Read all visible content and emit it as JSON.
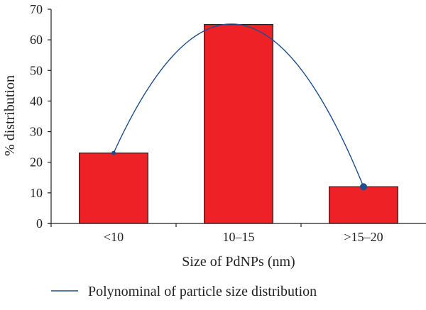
{
  "chart_data": {
    "type": "bar",
    "title": "",
    "xlabel": "Size of PdNPs (nm)",
    "ylabel": "% distribution",
    "categories": [
      "<10",
      "10–15",
      ">15–20"
    ],
    "values": [
      23,
      65,
      12
    ],
    "ylim": [
      0,
      70
    ],
    "yticks": [
      0,
      10,
      20,
      30,
      40,
      50,
      60,
      70
    ],
    "grid": false,
    "legend_position": "bottom",
    "colors": {
      "bar_fill": "#ee2127",
      "bar_stroke": "#231f20",
      "trend_line": "#1f4e8c",
      "marker": "#1f4e8c",
      "axis": "#231f20"
    },
    "trendline": {
      "type": "polynomial",
      "order": 2,
      "name": "Polynominal of particle size distribution"
    }
  }
}
